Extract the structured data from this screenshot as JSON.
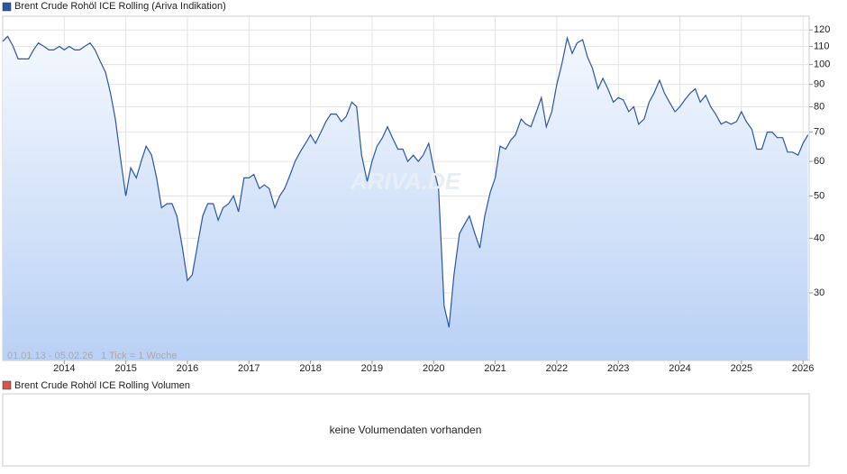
{
  "chart_data": {
    "type": "line",
    "title": "Brent Crude Rohöl ICE Rolling (Ariva Indikation)",
    "range_label": "01.01.13 - 05.02.26",
    "tick_label": "1 Tick = 1 Woche",
    "watermark": "ARIVA.DE",
    "volume_title": "Brent Crude Rohöl ICE Rolling Volumen",
    "volume_note": "keine Volumendaten vorhanden",
    "log_y": true,
    "grid": true,
    "xlim": [
      2013.0,
      2026.1
    ],
    "xticks": [
      2014,
      2015,
      2016,
      2017,
      2018,
      2019,
      2020,
      2021,
      2022,
      2023,
      2024,
      2025,
      2026
    ],
    "ylim": [
      21,
      129
    ],
    "yticks": [
      30,
      40,
      50,
      60,
      70,
      80,
      90,
      100,
      110,
      120
    ],
    "x": [
      2013.0,
      2013.08,
      2013.17,
      2013.25,
      2013.33,
      2013.42,
      2013.5,
      2013.58,
      2013.67,
      2013.75,
      2013.83,
      2013.92,
      2014.0,
      2014.08,
      2014.17,
      2014.25,
      2014.33,
      2014.42,
      2014.5,
      2014.58,
      2014.67,
      2014.75,
      2014.83,
      2014.92,
      2015.0,
      2015.08,
      2015.17,
      2015.25,
      2015.33,
      2015.42,
      2015.5,
      2015.58,
      2015.67,
      2015.75,
      2015.83,
      2015.92,
      2016.0,
      2016.08,
      2016.17,
      2016.25,
      2016.33,
      2016.42,
      2016.5,
      2016.58,
      2016.67,
      2016.75,
      2016.83,
      2016.92,
      2017.0,
      2017.08,
      2017.17,
      2017.25,
      2017.33,
      2017.42,
      2017.5,
      2017.58,
      2017.67,
      2017.75,
      2017.83,
      2017.92,
      2018.0,
      2018.08,
      2018.17,
      2018.25,
      2018.33,
      2018.42,
      2018.5,
      2018.58,
      2018.67,
      2018.75,
      2018.83,
      2018.92,
      2019.0,
      2019.08,
      2019.17,
      2019.25,
      2019.33,
      2019.42,
      2019.5,
      2019.58,
      2019.67,
      2019.75,
      2019.83,
      2019.92,
      2020.0,
      2020.08,
      2020.17,
      2020.25,
      2020.33,
      2020.42,
      2020.5,
      2020.58,
      2020.67,
      2020.75,
      2020.83,
      2020.92,
      2021.0,
      2021.08,
      2021.17,
      2021.25,
      2021.33,
      2021.42,
      2021.5,
      2021.58,
      2021.67,
      2021.75,
      2021.83,
      2021.92,
      2022.0,
      2022.08,
      2022.17,
      2022.25,
      2022.33,
      2022.42,
      2022.5,
      2022.58,
      2022.67,
      2022.75,
      2022.83,
      2022.92,
      2023.0,
      2023.08,
      2023.17,
      2023.25,
      2023.33,
      2023.42,
      2023.5,
      2023.58,
      2023.67,
      2023.75,
      2023.83,
      2023.92,
      2024.0,
      2024.08,
      2024.17,
      2024.25,
      2024.33,
      2024.42,
      2024.5,
      2024.58,
      2024.67,
      2024.75,
      2024.83,
      2024.92,
      2025.0,
      2025.08,
      2025.17,
      2025.25,
      2025.33,
      2025.42,
      2025.5,
      2025.58,
      2025.67,
      2025.75,
      2025.83,
      2025.92,
      2026.0,
      2026.08
    ],
    "series": [
      {
        "name": "Brent Crude Rohöl ICE Rolling (Ariva Indikation)",
        "color": "#2a56a8",
        "values": [
          113,
          116,
          110,
          103,
          103,
          103,
          108,
          112,
          110,
          108,
          108,
          110,
          108,
          110,
          108,
          108,
          110,
          112,
          108,
          102,
          96,
          86,
          75,
          60,
          50,
          58,
          55,
          60,
          65,
          62,
          55,
          47,
          48,
          48,
          45,
          38,
          32,
          33,
          39,
          45,
          48,
          48,
          44,
          47,
          48,
          50,
          46,
          55,
          55,
          56,
          52,
          53,
          52,
          47,
          50,
          52,
          56,
          60,
          63,
          66,
          69,
          66,
          70,
          74,
          77,
          77,
          74,
          76,
          82,
          80,
          62,
          54,
          60,
          65,
          68,
          72,
          68,
          64,
          64,
          60,
          62,
          60,
          62,
          66,
          58,
          52,
          28,
          25,
          33,
          41,
          43,
          45,
          41,
          38,
          45,
          51,
          55,
          65,
          64,
          67,
          69,
          75,
          73,
          72,
          78,
          84,
          72,
          78,
          90,
          100,
          115,
          106,
          112,
          114,
          104,
          98,
          88,
          93,
          88,
          82,
          84,
          83,
          78,
          80,
          73,
          75,
          82,
          86,
          92,
          86,
          82,
          78,
          80,
          83,
          86,
          88,
          82,
          85,
          80,
          77,
          73,
          74,
          73,
          74,
          78,
          74,
          71,
          64,
          64,
          70,
          70,
          68,
          68,
          63,
          63,
          62,
          66,
          69
        ]
      }
    ]
  }
}
